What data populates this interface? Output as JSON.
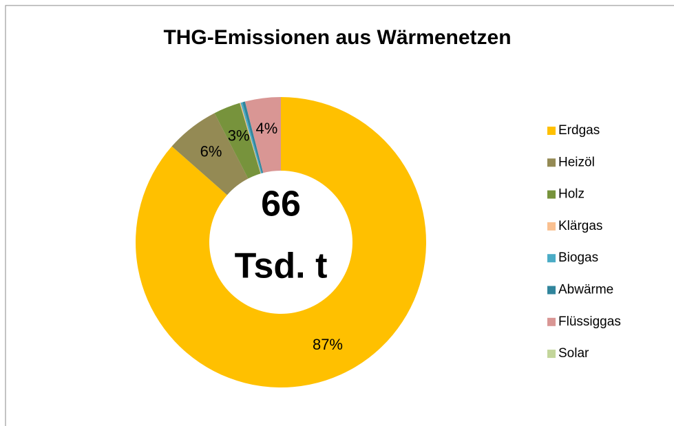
{
  "chart_data": {
    "type": "donut",
    "title": "THG-Emissionen aus Wärmenetzen",
    "categories": [
      "Erdgas",
      "Heizöl",
      "Holz",
      "Klärgas",
      "Biogas",
      "Abwärme",
      "Flüssiggas",
      "Solar"
    ],
    "values": [
      87,
      6,
      3,
      0.1,
      0.2,
      0.3,
      4,
      0
    ],
    "value_labels": [
      "87%",
      "6%",
      "3%",
      null,
      null,
      null,
      "4%",
      null
    ],
    "colors": [
      "#FFC000",
      "#948A54",
      "#77933C",
      "#FAC090",
      "#4BACC6",
      "#31859C",
      "#D99694",
      "#C3D69B"
    ],
    "center_label": [
      "66",
      "Tsd. t"
    ],
    "legend": "right"
  }
}
